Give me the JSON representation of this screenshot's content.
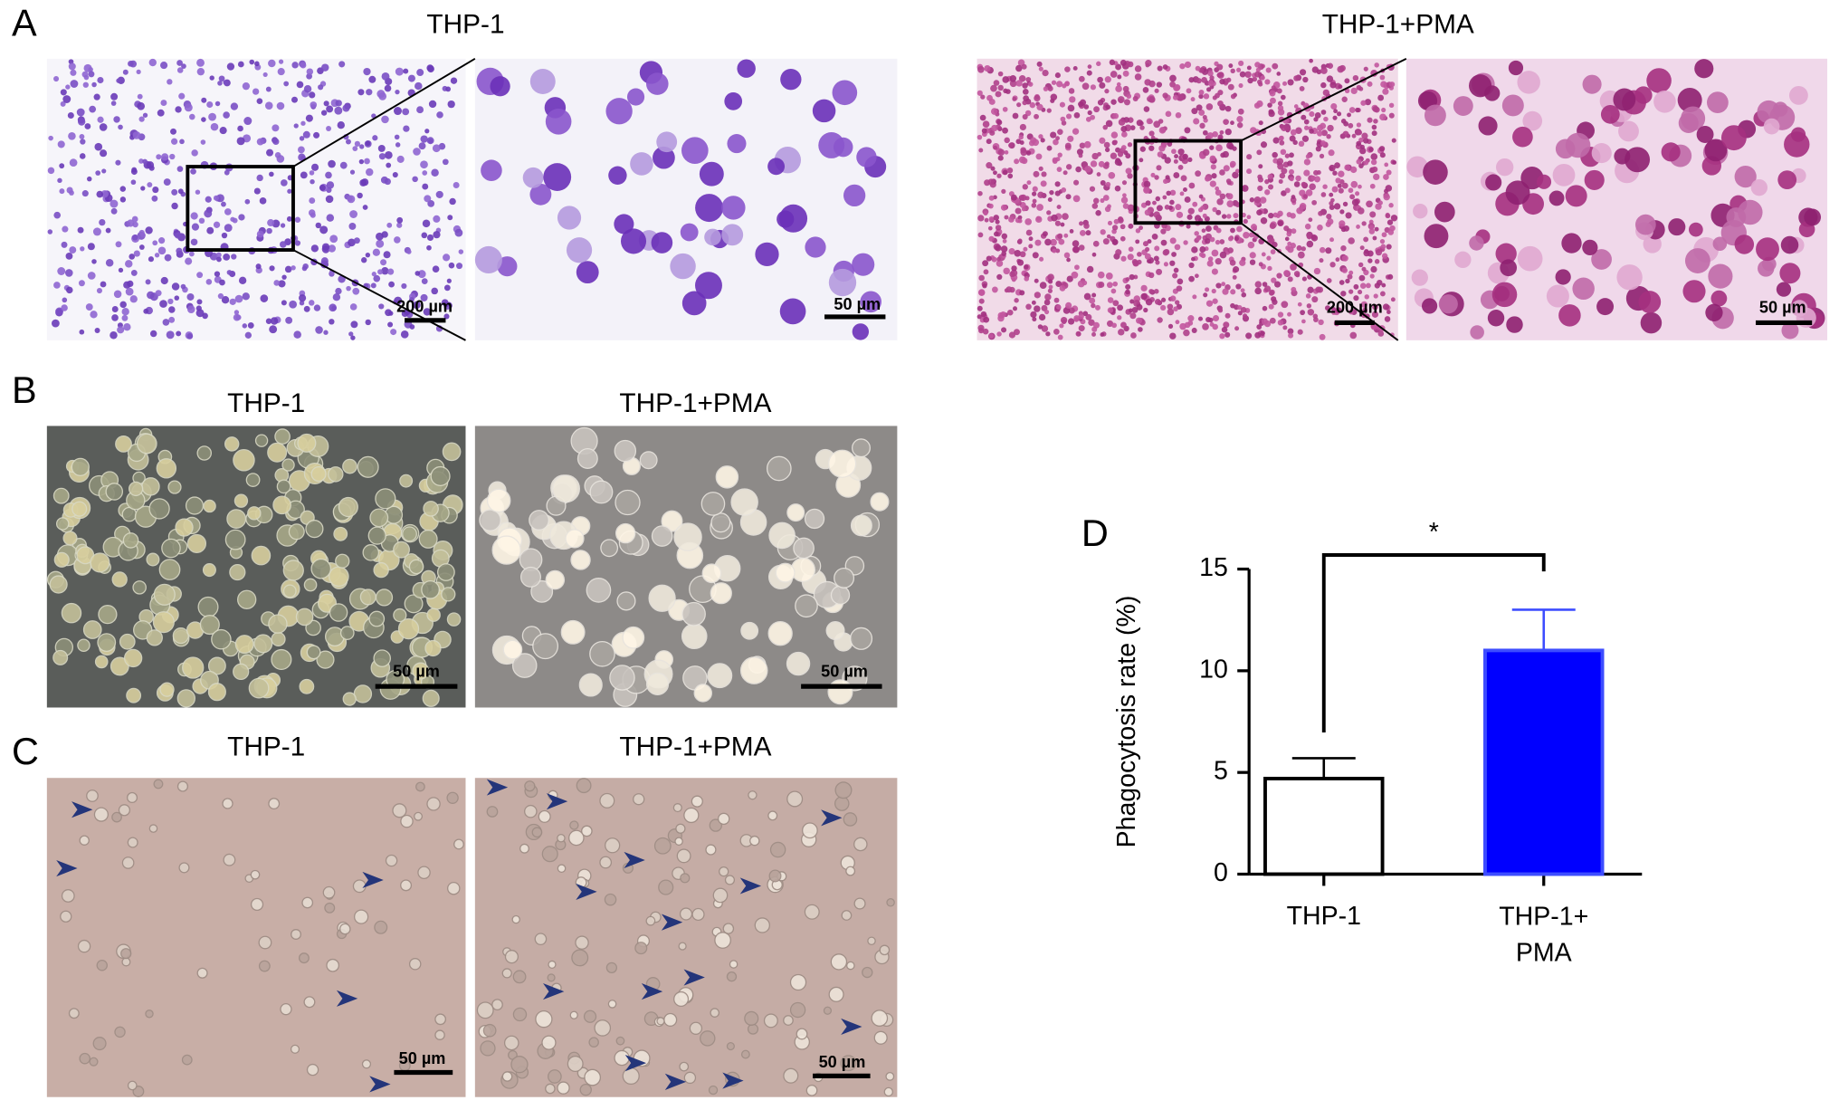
{
  "panels": {
    "A": {
      "label": "A",
      "titles": [
        "THP-1",
        "THP-1+PMA"
      ],
      "scale_bars": [
        "200 µm",
        "50 µm",
        "200 µm",
        "50 µm"
      ]
    },
    "B": {
      "label": "B",
      "titles": [
        "THP-1",
        "THP-1+PMA"
      ],
      "scale_bars": [
        "50 µm",
        "50 µm"
      ]
    },
    "C": {
      "label": "C",
      "titles": [
        "THP-1",
        "THP-1+PMA"
      ],
      "scale_bars": [
        "50 µm",
        "50 µm"
      ]
    }
  },
  "chart_data": {
    "type": "bar",
    "panel_label": "D",
    "ylabel": "Phagocytosis rate (%)",
    "categories": [
      "THP-1",
      "THP-1+ PMA"
    ],
    "values": [
      4.7,
      11
    ],
    "errors": [
      1,
      2
    ],
    "colors": [
      "#ffffff",
      "#0000ff"
    ],
    "edge_colors": [
      "#000000",
      "#3d4dff"
    ],
    "ylim": [
      0,
      15
    ],
    "yticks": [
      0,
      5,
      10,
      15
    ],
    "annotation": "*"
  }
}
